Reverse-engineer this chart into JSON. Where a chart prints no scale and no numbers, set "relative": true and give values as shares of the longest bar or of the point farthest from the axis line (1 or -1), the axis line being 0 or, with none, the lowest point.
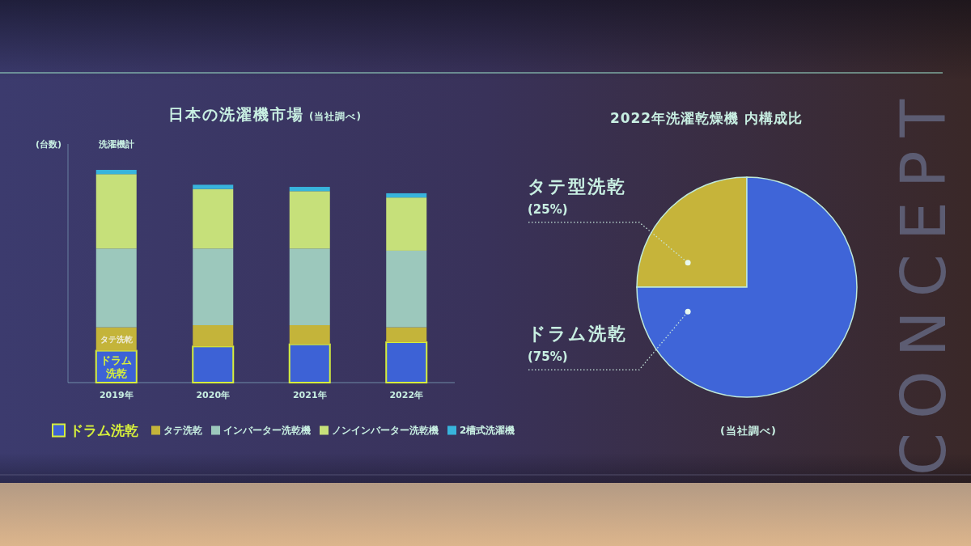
{
  "chart_data": [
    {
      "type": "bar",
      "title": "日本の洗濯機市場",
      "subtitle": "(当社調べ)",
      "ylabel": "(台数)",
      "categories": [
        "2019年",
        "2020年",
        "2021年",
        "2022年"
      ],
      "stacked": true,
      "relative": true,
      "legend": "bottom",
      "series": [
        {
          "name": "ドラム洗乾",
          "color": "#3d62d6",
          "values": [
            0.15,
            0.17,
            0.18,
            0.19
          ]
        },
        {
          "name": "タテ洗乾",
          "color": "#c4b43a",
          "values": [
            0.11,
            0.1,
            0.09,
            0.07
          ]
        },
        {
          "name": "インバーター洗乾機",
          "color": "#9cc8bc",
          "values": [
            0.37,
            0.36,
            0.36,
            0.36
          ]
        },
        {
          "name": "ノンインバーター洗乾機",
          "color": "#c6e07a",
          "values": [
            0.35,
            0.28,
            0.27,
            0.25
          ]
        },
        {
          "name": "2槽式洗濯機",
          "color": "#38b4dc",
          "values": [
            0.02,
            0.02,
            0.02,
            0.02
          ]
        }
      ],
      "annotations": [
        {
          "text": "洗濯機計",
          "x": "2019年",
          "y": 1
        }
      ]
    },
    {
      "type": "pie",
      "title": "2022年洗濯乾燥機 内構成比",
      "categories": [
        "タテ型洗乾",
        "ドラム洗乾"
      ],
      "values": [
        25,
        75
      ],
      "colors": [
        "#c6b43a",
        "#3f65d8"
      ],
      "value_labels": [
        "(25%)",
        "(75%)"
      ],
      "annotations": [
        "(当社調べ)"
      ]
    },
    {
      "type": "other",
      "annotations": [
        "CONCEPT"
      ]
    }
  ]
}
